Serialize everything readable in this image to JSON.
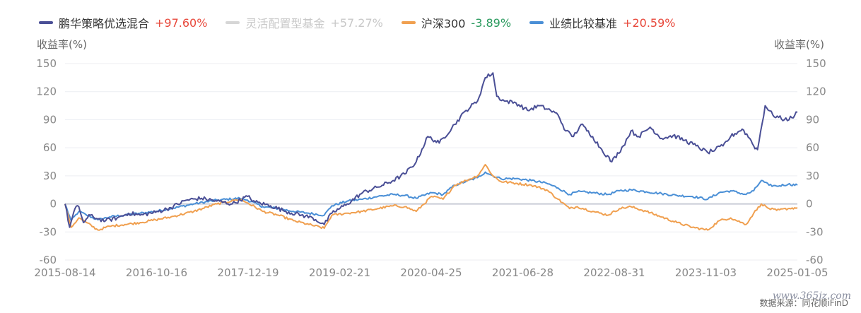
{
  "chart_data": {
    "type": "line",
    "xlabel": "",
    "ylabel": "收益率(%)",
    "ylabel_right": "收益率(%)",
    "ylim": [
      -60,
      150
    ],
    "yticks": [
      150,
      120,
      90,
      60,
      30,
      0,
      -30,
      -60
    ],
    "xticks": [
      "2015-08-14",
      "2016-10-16",
      "2017-12-19",
      "2019-02-21",
      "2020-04-25",
      "2021-06-28",
      "2022-08-31",
      "2023-11-03",
      "2025-01-05"
    ],
    "x_start": 2015.62,
    "x_end": 2025.17,
    "grid": true,
    "legend_position": "top-left",
    "series": [
      {
        "name": "鹏华策略优选混合",
        "change": "+97.60%",
        "color": "#4a4f96",
        "change_color": "#e8483b",
        "visible": true,
        "x": [
          2015.62,
          2015.68,
          2015.75,
          2015.8,
          2015.86,
          2015.95,
          2016.05,
          2016.15,
          2016.3,
          2016.45,
          2016.6,
          2016.8,
          2017.0,
          2017.2,
          2017.4,
          2017.6,
          2017.8,
          2018.0,
          2018.1,
          2018.3,
          2018.5,
          2018.7,
          2018.85,
          2019.0,
          2019.1,
          2019.3,
          2019.5,
          2019.7,
          2019.9,
          2020.05,
          2020.2,
          2020.35,
          2020.5,
          2020.7,
          2020.85,
          2021.0,
          2021.1,
          2021.2,
          2021.25,
          2021.35,
          2021.5,
          2021.65,
          2021.8,
          2021.95,
          2022.05,
          2022.15,
          2022.25,
          2022.35,
          2022.5,
          2022.6,
          2022.75,
          2022.9,
          2023.0,
          2023.1,
          2023.25,
          2023.4,
          2023.55,
          2023.7,
          2023.85,
          2024.0,
          2024.1,
          2024.2,
          2024.3,
          2024.45,
          2024.55,
          2024.6,
          2024.65,
          2024.75,
          2024.85,
          2025.0,
          2025.1,
          2025.17
        ],
        "values": [
          0,
          -25,
          -5,
          -3,
          -20,
          -12,
          -16,
          -18,
          -15,
          -10,
          -12,
          -9,
          -4,
          4,
          6,
          3,
          0,
          8,
          2,
          -2,
          -8,
          -12,
          -15,
          -22,
          -10,
          0,
          12,
          18,
          25,
          32,
          45,
          72,
          65,
          85,
          100,
          110,
          135,
          140,
          115,
          110,
          108,
          100,
          105,
          100,
          95,
          78,
          72,
          85,
          72,
          60,
          45,
          62,
          78,
          72,
          82,
          70,
          73,
          68,
          62,
          55,
          58,
          62,
          72,
          80,
          70,
          62,
          58,
          105,
          95,
          90,
          92,
          98
        ]
      },
      {
        "name": "灵活配置型基金",
        "change": "+57.27%",
        "color": "#d6d6d6",
        "change_color": "#c8c8c8",
        "visible": false,
        "x": [],
        "values": []
      },
      {
        "name": "沪深300",
        "change": "-3.89%",
        "color": "#f0a050",
        "change_color": "#2a9a5e",
        "visible": true,
        "x": [
          2015.62,
          2015.7,
          2015.8,
          2015.9,
          2016.05,
          2016.2,
          2016.4,
          2016.6,
          2016.8,
          2017.0,
          2017.3,
          2017.6,
          2017.9,
          2018.0,
          2018.2,
          2018.4,
          2018.6,
          2018.8,
          2019.0,
          2019.1,
          2019.3,
          2019.5,
          2019.7,
          2019.9,
          2020.05,
          2020.2,
          2020.4,
          2020.55,
          2020.7,
          2020.85,
          2021.0,
          2021.1,
          2021.2,
          2021.3,
          2021.5,
          2021.7,
          2021.9,
          2022.05,
          2022.2,
          2022.3,
          2022.5,
          2022.7,
          2022.85,
          2023.0,
          2023.2,
          2023.4,
          2023.6,
          2023.8,
          2024.0,
          2024.15,
          2024.3,
          2024.5,
          2024.6,
          2024.7,
          2024.8,
          2024.9,
          2025.05,
          2025.17
        ],
        "values": [
          0,
          -25,
          -15,
          -20,
          -28,
          -24,
          -22,
          -20,
          -17,
          -14,
          -8,
          0,
          5,
          1,
          -8,
          -12,
          -18,
          -22,
          -26,
          -12,
          -10,
          -8,
          -5,
          -2,
          -3,
          -8,
          8,
          5,
          20,
          25,
          30,
          42,
          30,
          24,
          22,
          20,
          15,
          5,
          -5,
          -3,
          -8,
          -12,
          -5,
          -3,
          -8,
          -14,
          -20,
          -25,
          -28,
          -18,
          -15,
          -22,
          -10,
          0,
          -5,
          -7,
          -5,
          -4
        ]
      },
      {
        "name": "业绩比较基准",
        "change": "+20.59%",
        "color": "#4a8fd6",
        "change_color": "#e8483b",
        "visible": true,
        "x": [
          2015.62,
          2015.7,
          2015.8,
          2015.9,
          2016.05,
          2016.2,
          2016.4,
          2016.6,
          2016.8,
          2017.0,
          2017.3,
          2017.6,
          2017.9,
          2018.0,
          2018.2,
          2018.4,
          2018.6,
          2018.8,
          2019.0,
          2019.1,
          2019.3,
          2019.5,
          2019.7,
          2019.9,
          2020.05,
          2020.2,
          2020.4,
          2020.55,
          2020.7,
          2020.85,
          2021.0,
          2021.1,
          2021.2,
          2021.3,
          2021.5,
          2021.7,
          2021.9,
          2022.05,
          2022.2,
          2022.3,
          2022.5,
          2022.7,
          2022.85,
          2023.0,
          2023.2,
          2023.4,
          2023.6,
          2023.8,
          2024.0,
          2024.15,
          2024.3,
          2024.5,
          2024.6,
          2024.7,
          2024.8,
          2024.9,
          2025.05,
          2025.17
        ],
        "values": [
          0,
          -18,
          -8,
          -12,
          -17,
          -14,
          -12,
          -10,
          -8,
          -5,
          0,
          4,
          6,
          4,
          -3,
          -5,
          -8,
          -10,
          -12,
          -2,
          3,
          5,
          8,
          10,
          9,
          6,
          12,
          10,
          20,
          24,
          28,
          34,
          30,
          27,
          27,
          25,
          22,
          17,
          10,
          13,
          12,
          10,
          14,
          15,
          13,
          11,
          9,
          8,
          5,
          12,
          14,
          10,
          14,
          25,
          20,
          19,
          21,
          20
        ]
      }
    ]
  },
  "source": "数据来源：同花顺iFinD",
  "watermark": "www.365jz.com"
}
